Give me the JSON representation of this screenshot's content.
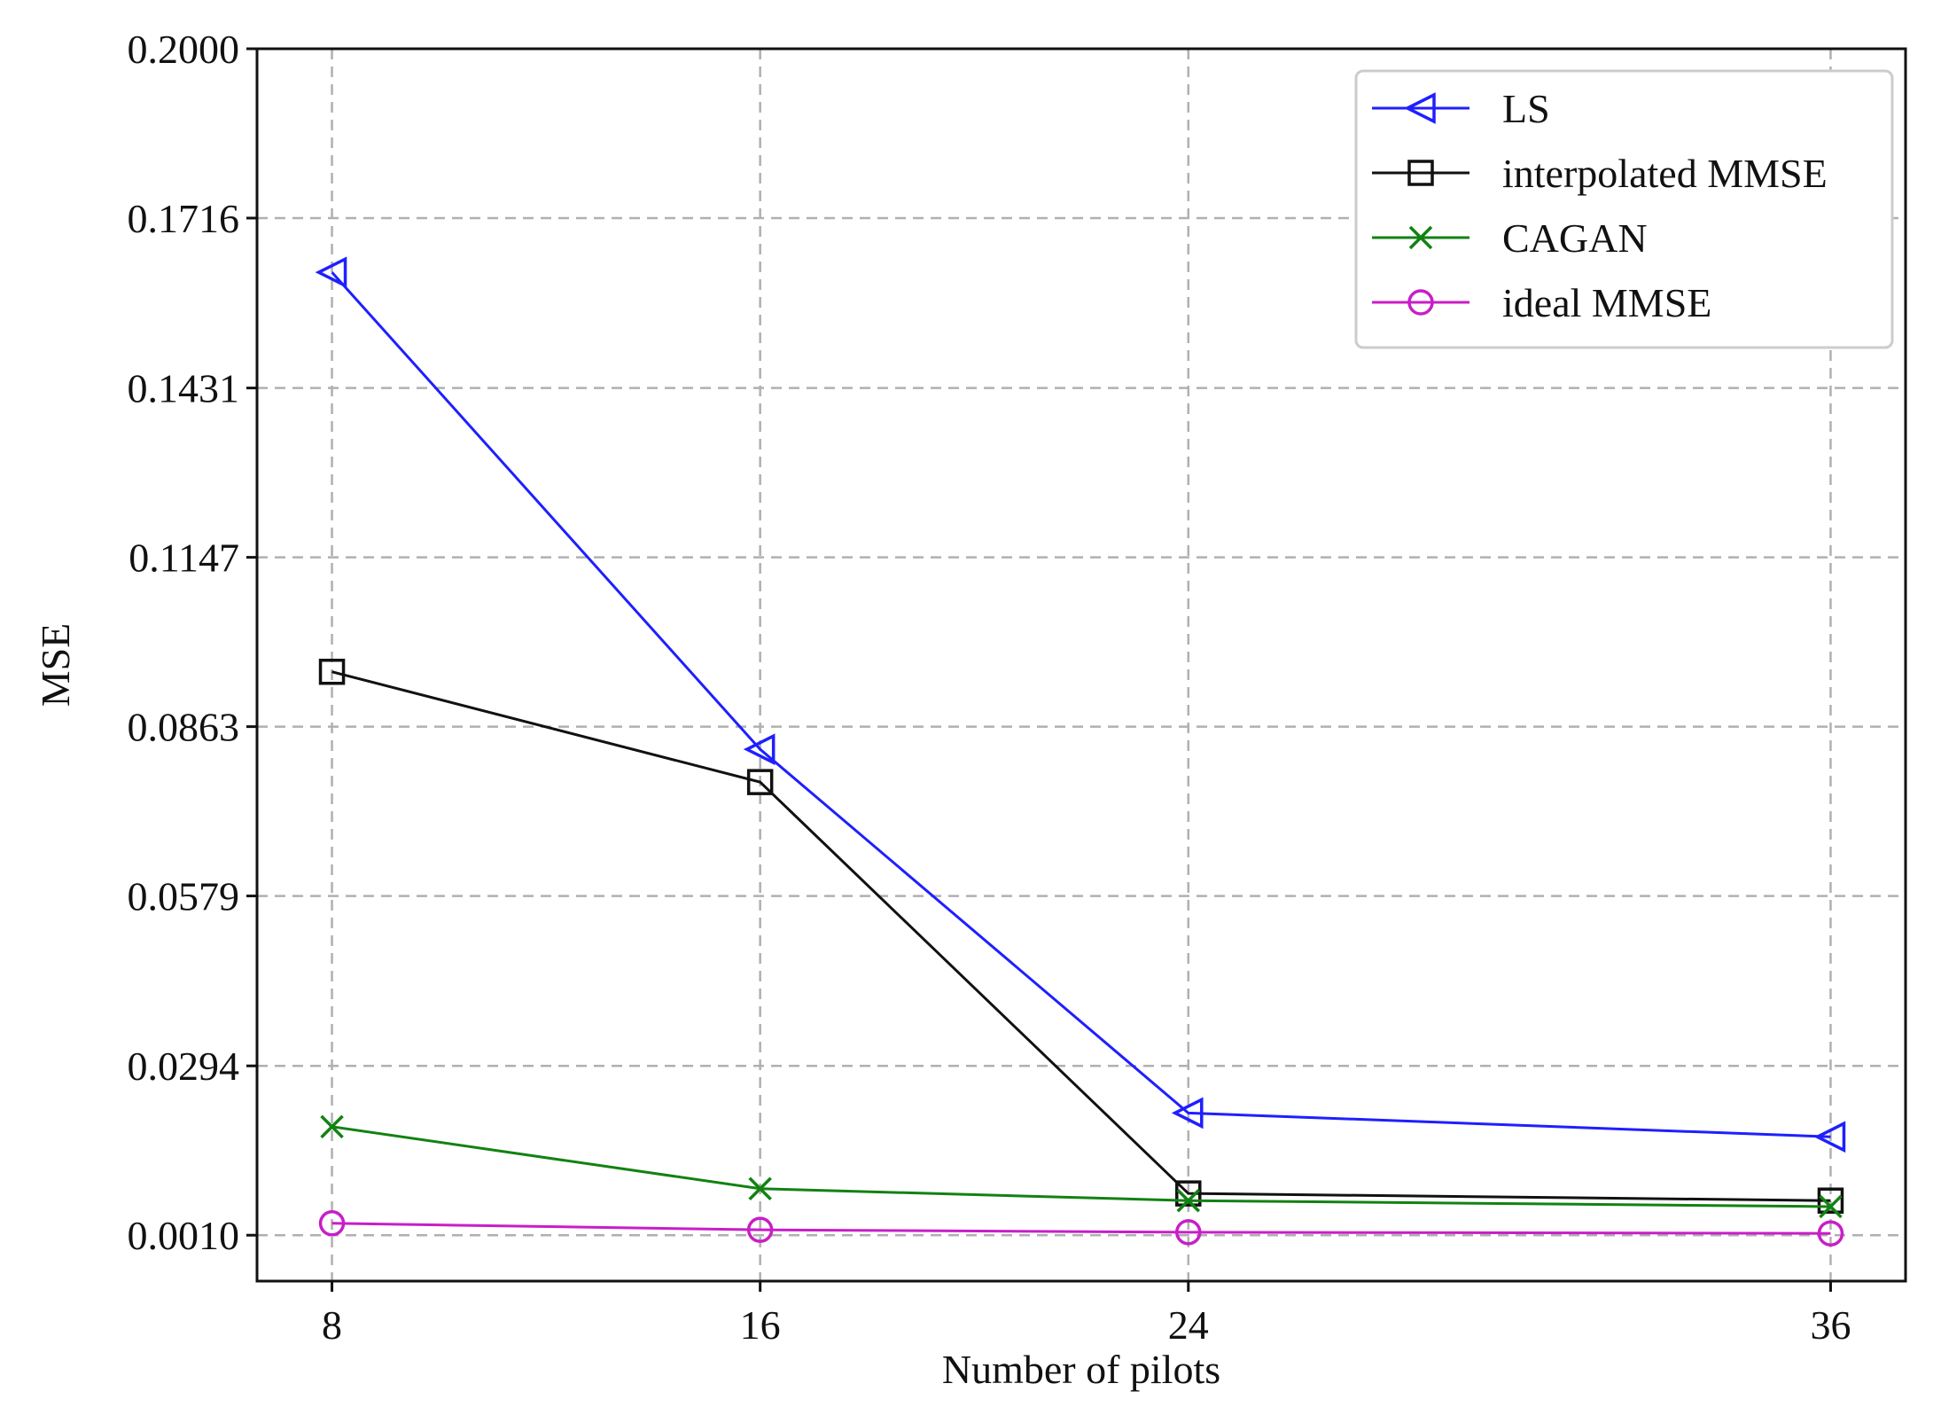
{
  "chart_data": {
    "type": "line",
    "title": "",
    "xlabel": "Number of pilots",
    "ylabel": "MSE",
    "x": [
      8,
      16,
      24,
      36
    ],
    "x_tick_labels": [
      "8",
      "16",
      "24",
      "36"
    ],
    "y_ticks": [
      0.001,
      0.0294,
      0.0579,
      0.0863,
      0.1147,
      0.1431,
      0.1716,
      0.2
    ],
    "y_tick_labels": [
      "0.0010",
      "0.0294",
      "0.0579",
      "0.0863",
      "0.1147",
      "0.1431",
      "0.1716",
      "0.2000"
    ],
    "xlim": [
      6.6,
      37.4
    ],
    "ylim": [
      -0.0067,
      0.2
    ],
    "grid": true,
    "legend_position": "top-right",
    "series": [
      {
        "name": "LS",
        "marker": "triangle-left",
        "color": "#1f1fff",
        "values": [
          0.1625,
          0.0825,
          0.0215,
          0.0175
        ]
      },
      {
        "name": "interpolated MMSE",
        "marker": "square",
        "color": "#111111",
        "values": [
          0.0955,
          0.077,
          0.008,
          0.0068
        ]
      },
      {
        "name": "CAGAN",
        "marker": "x",
        "color": "#128212",
        "values": [
          0.0192,
          0.0088,
          0.0068,
          0.0058
        ]
      },
      {
        "name": "ideal MMSE",
        "marker": "circle",
        "color": "#c81ec8",
        "values": [
          0.003,
          0.0019,
          0.0015,
          0.0013
        ]
      }
    ]
  }
}
